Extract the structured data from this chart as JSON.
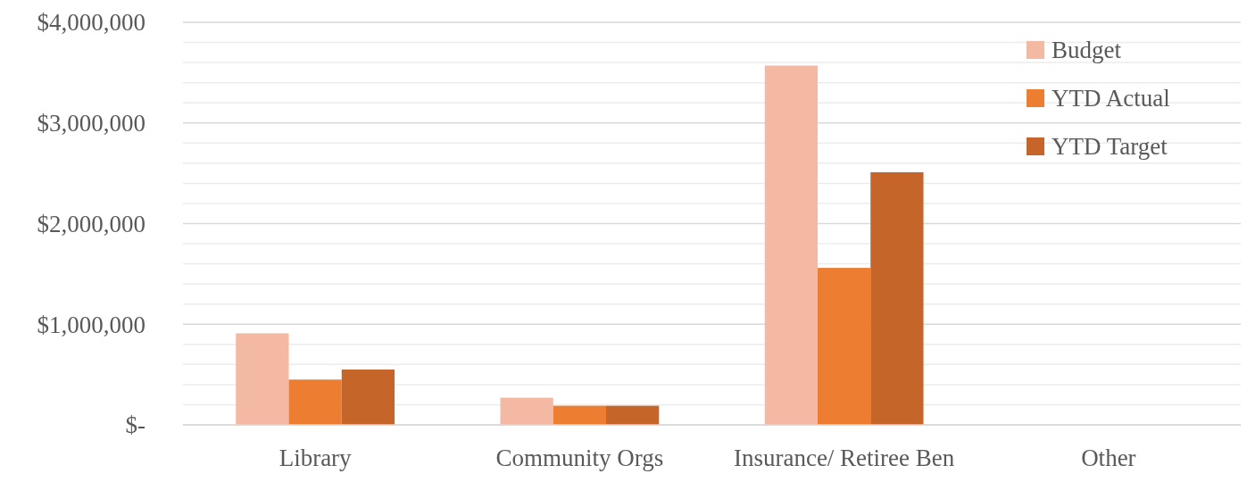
{
  "chart_data": {
    "type": "bar",
    "categories": [
      "Library",
      "Community Orgs",
      "Insurance/ Retiree Ben",
      "Other"
    ],
    "series": [
      {
        "name": "Budget",
        "color": "#f4b9a3",
        "values": [
          910000,
          270000,
          3570000,
          0
        ]
      },
      {
        "name": "YTD Actual",
        "color": "#ed7d31",
        "values": [
          450000,
          190000,
          1560000,
          0
        ]
      },
      {
        "name": "YTD Target",
        "color": "#c5652a",
        "values": [
          550000,
          190000,
          2510000,
          0
        ]
      }
    ],
    "ylim": [
      0,
      4000000
    ],
    "yticks": [
      {
        "value": 0,
        "label": "$-"
      },
      {
        "value": 200000,
        "label": null
      },
      {
        "value": 400000,
        "label": null
      },
      {
        "value": 600000,
        "label": null
      },
      {
        "value": 800000,
        "label": null
      },
      {
        "value": 1000000,
        "label": "$1,000,000"
      },
      {
        "value": 1200000,
        "label": null
      },
      {
        "value": 1400000,
        "label": null
      },
      {
        "value": 1600000,
        "label": null
      },
      {
        "value": 1800000,
        "label": null
      },
      {
        "value": 2000000,
        "label": "$2,000,000"
      },
      {
        "value": 2200000,
        "label": null
      },
      {
        "value": 2400000,
        "label": null
      },
      {
        "value": 2600000,
        "label": null
      },
      {
        "value": 2800000,
        "label": null
      },
      {
        "value": 3000000,
        "label": "$3,000,000"
      },
      {
        "value": 3200000,
        "label": null
      },
      {
        "value": 3400000,
        "label": null
      },
      {
        "value": 3600000,
        "label": null
      },
      {
        "value": 3800000,
        "label": null
      },
      {
        "value": 4000000,
        "label": "$4,000,000"
      }
    ],
    "grid": true,
    "legend": "top right"
  }
}
